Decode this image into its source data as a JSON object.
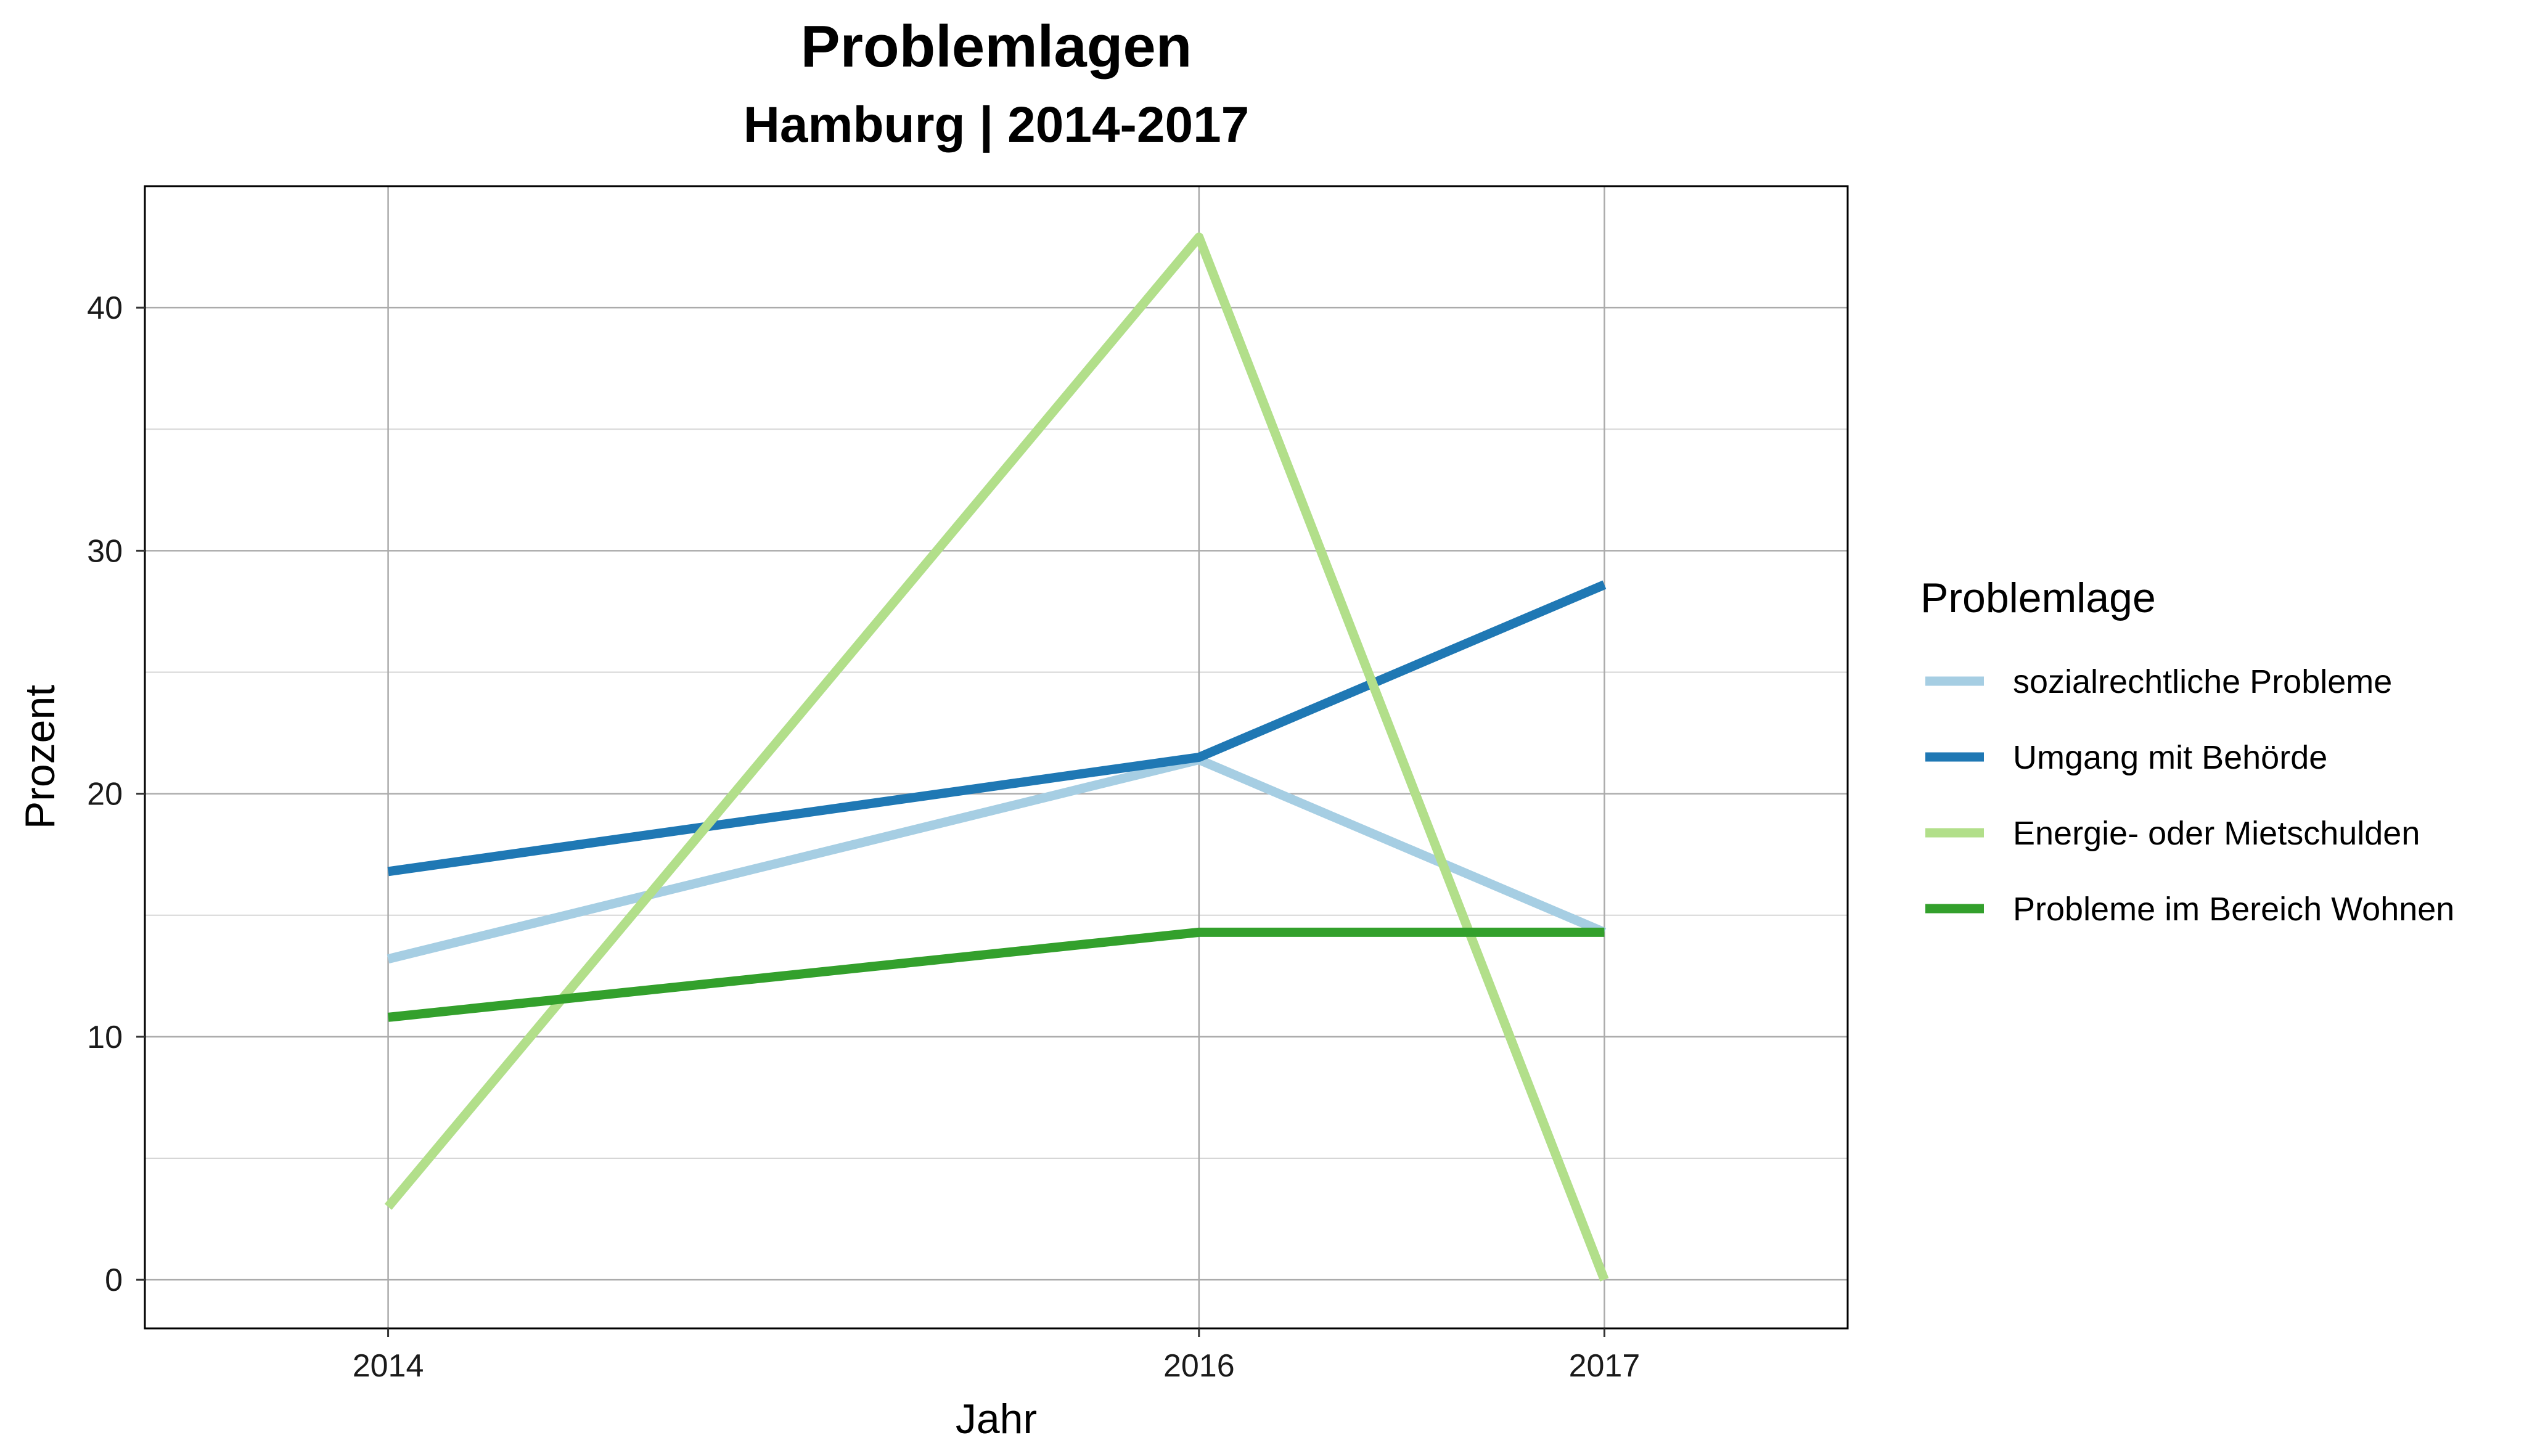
{
  "chart_data": {
    "type": "line",
    "title": "Problemlagen",
    "subtitle": "Hamburg | 2014-2017",
    "xlabel": "Jahr",
    "ylabel": "Prozent",
    "x": [
      2014,
      2016,
      2017
    ],
    "x_tick_labels": [
      "2014",
      "2016",
      "2017"
    ],
    "ylim": [
      -2,
      45
    ],
    "y_ticks": [
      0,
      10,
      20,
      30,
      40
    ],
    "y_tick_labels": [
      "0",
      "10",
      "20",
      "30",
      "40"
    ],
    "grid": true,
    "legend_title": "Problemlage",
    "legend_position": "right",
    "series": [
      {
        "name": "sozialrechtliche Probleme",
        "color": "#a6cee3",
        "values": [
          13.2,
          21.4,
          14.3
        ]
      },
      {
        "name": "Umgang mit Behörde",
        "color": "#1f78b4",
        "values": [
          16.8,
          21.5,
          28.6
        ]
      },
      {
        "name": "Energie- oder Mietschulden",
        "color": "#b2df8a",
        "values": [
          3.0,
          42.9,
          0.0
        ]
      },
      {
        "name": "Probleme im Bereich Wohnen",
        "color": "#33a02c",
        "values": [
          10.8,
          14.3,
          14.3
        ]
      }
    ]
  }
}
